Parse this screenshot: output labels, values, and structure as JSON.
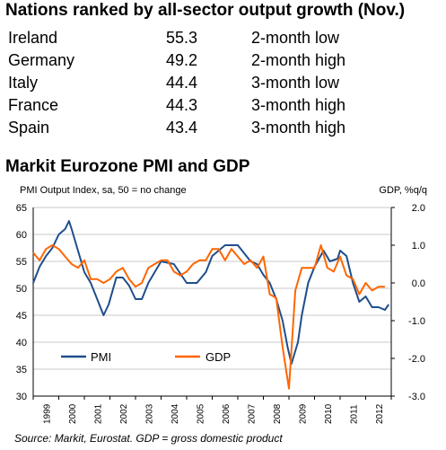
{
  "page": {
    "title": "Nations ranked by all-sector output growth (Nov.)",
    "rankings": [
      {
        "country": "Ireland",
        "value": "55.3",
        "note": "2-month low"
      },
      {
        "country": "Germany",
        "value": "49.2",
        "note": "2-month high"
      },
      {
        "country": "Italy",
        "value": "44.4",
        "note": "3-month low"
      },
      {
        "country": "France",
        "value": "44.3",
        "note": "3-month high"
      },
      {
        "country": "Spain",
        "value": "43.4",
        "note": "3-month high"
      }
    ],
    "source": "Source: Markit, Eurostat. GDP = gross domestic product"
  },
  "colors": {
    "pmi": "#1f4e8c",
    "gdp": "#ff6600",
    "grid": "#c8c8c8",
    "axis": "#000000"
  },
  "chart_data": {
    "type": "line",
    "title": "Markit Eurozone PMI and GDP",
    "ylabel_left": "PMI Output Index, sa, 50 = no change",
    "ylabel_right": "GDP, %q/q",
    "ylim_left": [
      30,
      65
    ],
    "ylim_right": [
      -3.0,
      2.0
    ],
    "yticks_left": [
      "65",
      "60",
      "55",
      "50",
      "45",
      "40",
      "35",
      "30"
    ],
    "yticks_right": [
      "2.0",
      "1.0",
      "0.0",
      "-1.0",
      "-2.0",
      "-3.0"
    ],
    "xlim": [
      1999,
      2013
    ],
    "xticks": [
      "1999",
      "2000",
      "2001",
      "2002",
      "2003",
      "2004",
      "2005",
      "2006",
      "2007",
      "2008",
      "2009",
      "2010",
      "2011",
      "2012"
    ],
    "grid": "horizontal",
    "legend_placement": "bottom-left",
    "series": [
      {
        "name": "PMI",
        "axis": "left",
        "x": [
          1999.0,
          1999.25,
          1999.5,
          1999.75,
          2000.0,
          2000.25,
          2000.4,
          2000.5,
          2000.75,
          2001.0,
          2001.25,
          2001.5,
          2001.75,
          2001.95,
          2002.25,
          2002.5,
          2002.75,
          2003.0,
          2003.25,
          2003.5,
          2003.75,
          2004.0,
          2004.5,
          2005.0,
          2005.4,
          2005.75,
          2006.0,
          2006.5,
          2007.0,
          2007.5,
          2007.75,
          2008.0,
          2008.25,
          2008.5,
          2008.75,
          2008.95,
          2009.1,
          2009.35,
          2009.5,
          2009.75,
          2010.0,
          2010.35,
          2010.6,
          2010.9,
          2011.0,
          2011.25,
          2011.5,
          2011.75,
          2012.0,
          2012.25,
          2012.5,
          2012.75,
          2012.9
        ],
        "values": [
          51,
          54,
          56,
          57.5,
          60,
          61,
          62.5,
          61,
          57,
          53,
          51,
          48,
          45,
          47,
          52,
          52,
          50.5,
          48,
          48,
          51,
          53,
          55,
          54.5,
          51,
          51,
          53,
          56,
          58,
          58,
          55,
          54.5,
          52.5,
          51,
          48,
          44,
          39,
          36,
          40,
          45,
          51,
          54,
          57,
          55,
          55.5,
          57,
          56,
          51,
          47.5,
          48.5,
          46.5,
          46.5,
          46,
          47
        ]
      },
      {
        "name": "GDP",
        "axis": "right",
        "x": [
          1999.0,
          1999.25,
          1999.5,
          1999.75,
          2000.0,
          2000.25,
          2000.5,
          2000.75,
          2001.0,
          2001.25,
          2001.5,
          2001.75,
          2002.0,
          2002.25,
          2002.5,
          2002.75,
          2003.0,
          2003.25,
          2003.5,
          2003.75,
          2004.0,
          2004.25,
          2004.5,
          2004.75,
          2005.0,
          2005.25,
          2005.5,
          2005.75,
          2006.0,
          2006.25,
          2006.5,
          2006.75,
          2007.0,
          2007.25,
          2007.5,
          2007.75,
          2008.0,
          2008.25,
          2008.5,
          2008.75,
          2009.0,
          2009.25,
          2009.5,
          2009.75,
          2010.0,
          2010.25,
          2010.5,
          2010.75,
          2011.0,
          2011.25,
          2011.5,
          2011.75,
          2012.0,
          2012.25,
          2012.5,
          2012.75
        ],
        "values": [
          0.8,
          0.6,
          0.9,
          1.0,
          0.9,
          0.7,
          0.5,
          0.4,
          0.6,
          0.1,
          0.1,
          0.0,
          0.1,
          0.3,
          0.4,
          0.1,
          -0.1,
          0.0,
          0.4,
          0.5,
          0.6,
          0.6,
          0.3,
          0.2,
          0.3,
          0.5,
          0.6,
          0.6,
          0.9,
          0.9,
          0.6,
          0.9,
          0.7,
          0.5,
          0.6,
          0.4,
          0.7,
          -0.3,
          -0.4,
          -1.7,
          -2.8,
          -0.2,
          0.4,
          0.4,
          0.4,
          1.0,
          0.4,
          0.3,
          0.7,
          0.2,
          0.1,
          -0.3,
          0.0,
          -0.2,
          -0.1,
          -0.1
        ]
      }
    ]
  }
}
